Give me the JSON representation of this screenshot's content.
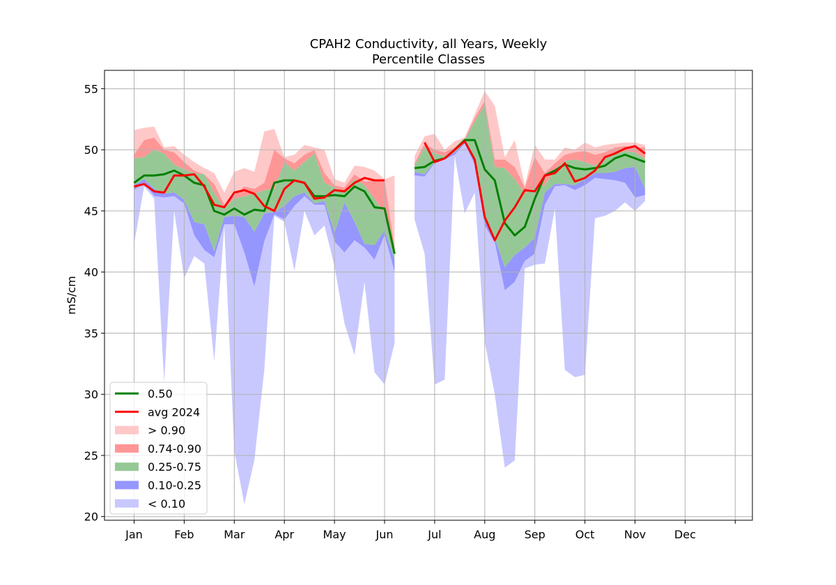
{
  "chart_data": {
    "type": "area",
    "title": "CPAH2 Conductivity, all Years, Weekly",
    "subtitle": "Percentile Classes",
    "xlabel": "",
    "ylabel": "mS/cm",
    "ylim": [
      19.7,
      56.5
    ],
    "yticks": [
      20,
      25,
      30,
      35,
      40,
      45,
      50,
      55
    ],
    "months": [
      "Jan",
      "Feb",
      "Mar",
      "Apr",
      "May",
      "Jun",
      "Jul",
      "Aug",
      "Sep",
      "Oct",
      "Nov",
      "Dec"
    ],
    "grid": true,
    "legend_position": "lower-left",
    "colors": {
      "median": "#008000",
      "avg": "#ff0000",
      "p90plus": "#ffc8c8",
      "p74_90": "#ff9696",
      "p25_75": "#96c896",
      "p10_25": "#9696ff",
      "p10minus": "#c8c8ff"
    },
    "weeks": [
      {
        "min": 42.3,
        "p10": 46.7,
        "p25": 47.1,
        "p75": 49.3,
        "p90": 49.6,
        "max": 51.6
      },
      {
        "min": 47.0,
        "p10": 47.3,
        "p25": 47.6,
        "p75": 49.4,
        "p90": 50.8,
        "max": 51.8
      },
      {
        "min": 46.0,
        "p10": 46.2,
        "p25": 46.8,
        "p75": 50.0,
        "p90": 51.0,
        "max": 51.9
      },
      {
        "min": 31.0,
        "p10": 46.1,
        "p25": 46.4,
        "p75": 49.7,
        "p90": 50.0,
        "max": 50.2
      },
      {
        "min": 45.0,
        "p10": 46.2,
        "p25": 46.5,
        "p75": 48.8,
        "p90": 49.8,
        "max": 50.3
      },
      {
        "min": 39.5,
        "p10": 45.6,
        "p25": 45.9,
        "p75": 48.4,
        "p90": 49.0,
        "max": 49.6
      },
      {
        "min": 41.3,
        "p10": 43.0,
        "p25": 44.1,
        "p75": 48.1,
        "p90": 48.3,
        "max": 49.0
      },
      {
        "min": 40.7,
        "p10": 41.8,
        "p25": 43.9,
        "p75": 48.0,
        "p90": 48.0,
        "max": 48.5
      },
      {
        "min": 32.7,
        "p10": 41.2,
        "p25": 41.7,
        "p75": 46.5,
        "p90": 47.2,
        "max": 48.1
      },
      {
        "min": 43.8,
        "p10": 43.9,
        "p25": 44.5,
        "p75": 45.2,
        "p90": 45.5,
        "max": 46.5
      },
      {
        "min": 25.4,
        "p10": 43.9,
        "p25": 44.6,
        "p75": 46.0,
        "p90": 46.3,
        "max": 48.2
      },
      {
        "min": 21.0,
        "p10": 41.6,
        "p25": 44.5,
        "p75": 46.2,
        "p90": 47.0,
        "max": 48.5
      },
      {
        "min": 24.6,
        "p10": 38.8,
        "p25": 43.3,
        "p75": 46.4,
        "p90": 46.8,
        "max": 48.2
      },
      {
        "min": 32.0,
        "p10": 42.5,
        "p25": 44.8,
        "p75": 46.7,
        "p90": 47.3,
        "max": 51.5
      },
      {
        "min": 44.6,
        "p10": 44.7,
        "p25": 44.9,
        "p75": 46.8,
        "p90": 50.0,
        "max": 51.7
      },
      {
        "min": 44.1,
        "p10": 44.3,
        "p25": 45.4,
        "p75": 49.0,
        "p90": 49.3,
        "max": 49.4
      },
      {
        "min": 40.1,
        "p10": 45.4,
        "p25": 46.2,
        "p75": 48.3,
        "p90": 48.9,
        "max": 49.6
      },
      {
        "min": 45.0,
        "p10": 46.2,
        "p25": 46.5,
        "p75": 49.0,
        "p90": 49.6,
        "max": 50.4
      },
      {
        "min": 43.0,
        "p10": 45.5,
        "p25": 45.6,
        "p75": 49.7,
        "p90": 50.0,
        "max": 50.2
      },
      {
        "min": 43.8,
        "p10": 45.5,
        "p25": 45.8,
        "p75": 47.3,
        "p90": 48.1,
        "max": 50.0
      },
      {
        "min": 40.5,
        "p10": 42.5,
        "p25": 43.2,
        "p75": 46.9,
        "p90": 47.1,
        "max": 47.6
      },
      {
        "min": 35.8,
        "p10": 41.6,
        "p25": 45.7,
        "p75": 46.6,
        "p90": 46.9,
        "max": 47.3
      },
      {
        "min": 33.2,
        "p10": 42.6,
        "p25": 44.1,
        "p75": 47.6,
        "p90": 48.0,
        "max": 48.7
      },
      {
        "min": 39.2,
        "p10": 42.0,
        "p25": 42.3,
        "p75": 47.1,
        "p90": 47.4,
        "max": 48.6
      },
      {
        "min": 31.8,
        "p10": 41.0,
        "p25": 42.2,
        "p75": 46.0,
        "p90": 47.5,
        "max": 48.3
      },
      {
        "min": 30.8,
        "p10": 43.0,
        "p25": 43.4,
        "p75": 44.8,
        "p90": 47.6,
        "max": 47.6
      },
      {
        "min": 34.2,
        "p10": 40.0,
        "p25": 41.0,
        "p75": 41.5,
        "p90": 42.0,
        "max": 47.9
      },
      null,
      {
        "min": 44.3,
        "p10": 47.9,
        "p25": 48.2,
        "p75": 48.7,
        "p90": 48.9,
        "max": 49.5
      },
      {
        "min": 41.5,
        "p10": 47.8,
        "p25": 48.0,
        "p75": 50.2,
        "p90": 50.5,
        "max": 51.1
      },
      {
        "min": 30.8,
        "p10": 48.9,
        "p25": 49.0,
        "p75": 49.7,
        "p90": 50.0,
        "max": 51.3
      },
      {
        "min": 31.2,
        "p10": 49.2,
        "p25": 49.3,
        "p75": 49.5,
        "p90": 49.8,
        "max": 50.0
      },
      {
        "min": 49.5,
        "p10": 49.6,
        "p25": 49.8,
        "p75": 50.0,
        "p90": 50.2,
        "max": 50.7
      },
      {
        "min": 44.8,
        "p10": 50.5,
        "p25": 50.6,
        "p75": 50.8,
        "p90": 50.9,
        "max": 51.0
      },
      {
        "min": 46.5,
        "p10": 48.8,
        "p25": 49.3,
        "p75": 52.3,
        "p90": 52.6,
        "max": 52.9
      },
      {
        "min": 34.3,
        "p10": 43.8,
        "p25": 44.6,
        "p75": 53.7,
        "p90": 54.0,
        "max": 54.8
      },
      {
        "min": 30.0,
        "p10": 42.4,
        "p25": 42.8,
        "p75": 48.6,
        "p90": 49.2,
        "max": 53.6
      },
      {
        "min": 24.0,
        "p10": 38.5,
        "p25": 40.4,
        "p75": 48.5,
        "p90": 49.2,
        "max": 49.4
      },
      {
        "min": 24.6,
        "p10": 39.2,
        "p25": 41.4,
        "p75": 47.6,
        "p90": 48.6,
        "max": 50.8
      },
      {
        "min": 40.3,
        "p10": 40.9,
        "p25": 42.0,
        "p75": 46.4,
        "p90": 46.9,
        "max": 47.1
      },
      {
        "min": 40.6,
        "p10": 41.5,
        "p25": 42.8,
        "p75": 46.9,
        "p90": 49.4,
        "max": 50.4
      },
      {
        "min": 40.7,
        "p10": 45.5,
        "p25": 46.5,
        "p75": 47.1,
        "p90": 48.1,
        "max": 49.2
      },
      {
        "min": 45.2,
        "p10": 47.0,
        "p25": 47.2,
        "p75": 48.4,
        "p90": 48.9,
        "max": 49.2
      },
      {
        "min": 32.0,
        "p10": 47.1,
        "p25": 47.2,
        "p75": 49.1,
        "p90": 49.6,
        "max": 50.2
      },
      {
        "min": 31.4,
        "p10": 46.7,
        "p25": 47.1,
        "p75": 49.2,
        "p90": 49.8,
        "max": 50.0
      },
      {
        "min": 31.6,
        "p10": 47.1,
        "p25": 47.6,
        "p75": 49.0,
        "p90": 49.9,
        "max": 50.6
      },
      {
        "min": 44.4,
        "p10": 47.7,
        "p25": 48.1,
        "p75": 48.7,
        "p90": 49.6,
        "max": 50.2
      },
      {
        "min": 44.6,
        "p10": 47.6,
        "p25": 48.1,
        "p75": 49.4,
        "p90": 49.8,
        "max": 50.4
      },
      {
        "min": 45.0,
        "p10": 47.5,
        "p25": 48.2,
        "p75": 49.7,
        "p90": 50.2,
        "max": 50.5
      },
      {
        "min": 45.7,
        "p10": 47.3,
        "p25": 48.5,
        "p75": 49.9,
        "p90": 50.3,
        "max": 50.6
      },
      {
        "min": 45.0,
        "p10": 46.1,
        "p25": 48.6,
        "p75": 49.8,
        "p90": 50.2,
        "max": 50.6
      },
      {
        "min": 45.8,
        "p10": 46.3,
        "p25": 46.8,
        "p75": 49.3,
        "p90": 50.2,
        "max": 50.4
      }
    ],
    "series": [
      {
        "name": "0.50",
        "values": [
          47.3,
          47.9,
          47.9,
          48.0,
          48.3,
          47.9,
          47.3,
          47.1,
          45.0,
          44.7,
          45.2,
          44.7,
          45.1,
          45.0,
          47.3,
          47.5,
          47.5,
          47.3,
          46.2,
          46.2,
          46.3,
          46.2,
          47.0,
          46.6,
          45.3,
          45.2,
          41.5,
          null,
          48.5,
          48.6,
          49.1,
          49.3,
          50.0,
          50.8,
          50.8,
          48.4,
          47.5,
          44.0,
          43.0,
          43.7,
          46.0,
          47.9,
          48.3,
          48.8,
          48.5,
          48.4,
          48.5,
          48.7,
          49.3,
          49.6,
          49.3,
          49.0
        ]
      },
      {
        "name": "avg 2024",
        "values": [
          47.0,
          47.2,
          46.6,
          46.5,
          47.9,
          47.9,
          48.0,
          47.0,
          45.5,
          45.3,
          46.5,
          46.7,
          46.4,
          45.4,
          45.0,
          46.8,
          47.5,
          47.3,
          46.0,
          46.1,
          46.7,
          46.6,
          47.3,
          47.7,
          47.5,
          47.5,
          null,
          null,
          null,
          50.6,
          49.0,
          49.3,
          50.0,
          50.7,
          49.2,
          44.5,
          42.6,
          44.2,
          45.3,
          46.7,
          46.6,
          47.9,
          48.1,
          48.9,
          47.4,
          47.7,
          48.3,
          49.4,
          49.7,
          50.1,
          50.3,
          49.7
        ]
      }
    ],
    "legend": [
      "0.50",
      "avg 2024",
      "> 0.90",
      "0.74-0.90",
      "0.25-0.75",
      "0.10-0.25",
      "< 0.10"
    ]
  }
}
